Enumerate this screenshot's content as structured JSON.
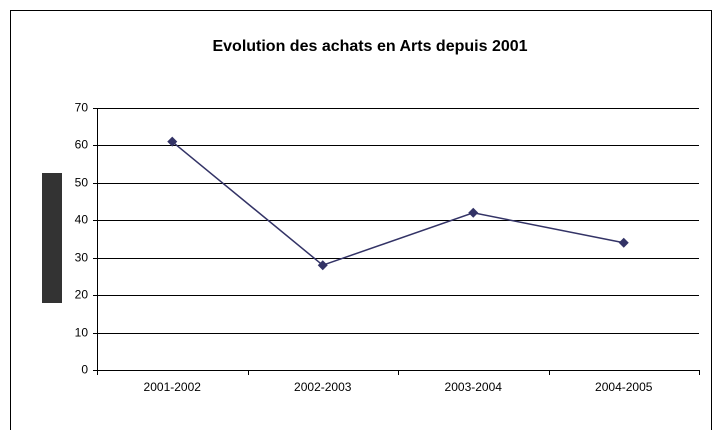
{
  "chart_data": {
    "type": "line",
    "title": "Evolution des achats en Arts depuis 2001",
    "categories": [
      "2001-2002",
      "2002-2003",
      "2003-2004",
      "2004-2005"
    ],
    "values": [
      61,
      28,
      42,
      34
    ],
    "color": "#333366",
    "ylim": [
      0,
      70
    ],
    "yticks": [
      0,
      10,
      20,
      30,
      40,
      50,
      60,
      70
    ],
    "grid": true
  }
}
